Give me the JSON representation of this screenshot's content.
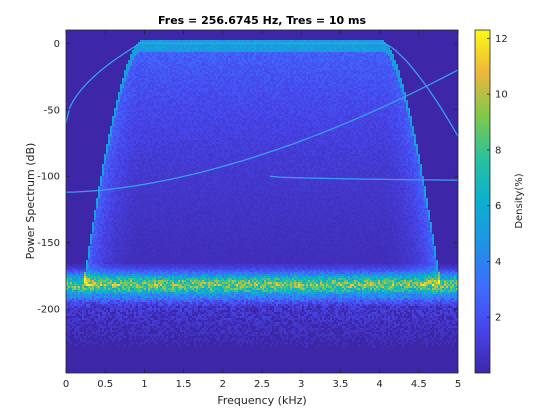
{
  "chart_data": {
    "type": "heatmap",
    "title": "Fres = 256.6745 Hz, Tres = 10 ms",
    "xlabel": "Frequency (kHz)",
    "ylabel": "Power Spectrum (dB)",
    "xlim": [
      0,
      5
    ],
    "ylim": [
      -248,
      10
    ],
    "x_ticks": [
      0,
      0.5,
      1,
      1.5,
      2,
      2.5,
      3,
      3.5,
      4,
      4.5,
      5
    ],
    "x_tick_labels": [
      "0",
      "0.5",
      "1",
      "1.5",
      "2",
      "2.5",
      "3",
      "3.5",
      "4",
      "4.5",
      "5"
    ],
    "y_ticks": [
      0,
      -50,
      -100,
      -150,
      -200
    ],
    "y_tick_labels": [
      "0",
      "-50",
      "-100",
      "-150",
      "-200"
    ],
    "colormap": "parula",
    "background_color": "#3e26a8",
    "colorbar": {
      "label": "Density(%)",
      "range": [
        0,
        12.3
      ],
      "ticks": [
        2,
        4,
        6,
        8,
        10,
        12
      ],
      "tick_labels": [
        "2",
        "4",
        "6",
        "8",
        "10",
        "12"
      ],
      "placement": "right"
    },
    "features": {
      "passband": {
        "from_khz": 0.95,
        "to_khz": 4.05,
        "level_db": 0
      },
      "noise_floor": {
        "center_db": -182,
        "width_db": 20,
        "peak_density": 11
      },
      "rising_curve": {
        "from": [
          0,
          -112
        ],
        "to": [
          5,
          -20
        ]
      },
      "falling_curve": {
        "from": [
          2.6,
          -100
        ],
        "to": [
          5,
          -103
        ]
      }
    }
  }
}
